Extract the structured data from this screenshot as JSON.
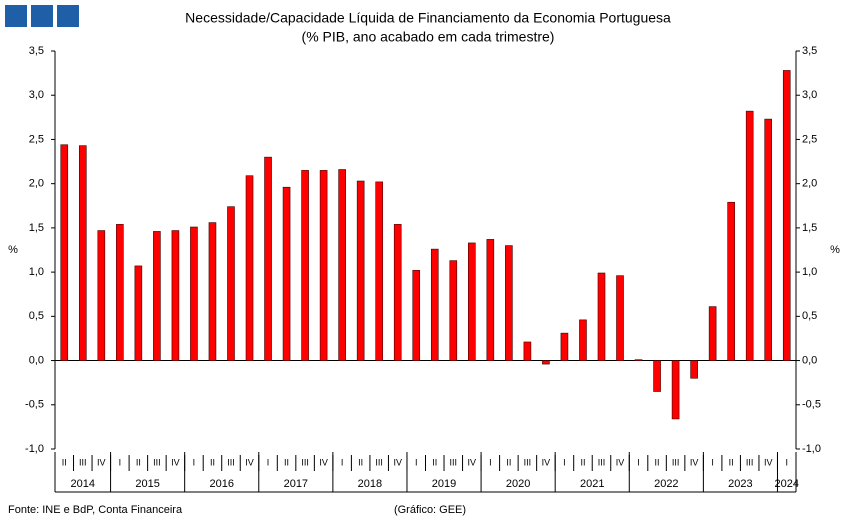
{
  "chart_data": {
    "type": "bar",
    "title": "Necessidade/Capacidade Líquida de Financiamento da Economia Portuguesa",
    "subtitle": "(% PIB, ano acabado em cada trimestre)",
    "y_label": "%",
    "y2_label": "%",
    "source": "Fonte: INE e BdP, Conta Financeira",
    "credit": "(Gráfico: GEE)",
    "categories": [
      "II",
      "III",
      "IV",
      "I",
      "II",
      "III",
      "IV",
      "I",
      "II",
      "III",
      "IV",
      "I",
      "II",
      "III",
      "IV",
      "I",
      "II",
      "III",
      "IV",
      "I",
      "II",
      "III",
      "IV",
      "I",
      "II",
      "III",
      "IV",
      "I",
      "II",
      "III",
      "IV",
      "I",
      "II",
      "III",
      "IV",
      "I",
      "II",
      "III",
      "IV",
      "I"
    ],
    "years": [
      "2014",
      "2015",
      "2016",
      "2017",
      "2018",
      "2019",
      "2020",
      "2021",
      "2022",
      "2023",
      "2024"
    ],
    "values": [
      2.44,
      2.43,
      1.47,
      1.54,
      1.07,
      1.46,
      1.47,
      1.51,
      1.56,
      1.74,
      2.09,
      2.3,
      1.96,
      2.15,
      2.15,
      2.16,
      2.03,
      2.02,
      1.54,
      1.02,
      1.26,
      1.13,
      1.33,
      1.37,
      1.3,
      0.21,
      -0.04,
      0.31,
      0.46,
      0.99,
      0.96,
      0.01,
      -0.35,
      -0.66,
      -0.2,
      0.61,
      1.79,
      2.82,
      2.73,
      3.28
    ],
    "color": "#ff0000",
    "ylim": [
      -1,
      3.5
    ],
    "yticks": [
      {
        "value": -1,
        "label": "-1,0"
      },
      {
        "value": -0.5,
        "label": "-0,5"
      },
      {
        "value": 0,
        "label": "0,0"
      },
      {
        "value": 0.5,
        "label": "0,5"
      },
      {
        "value": 1,
        "label": "1,0"
      },
      {
        "value": 1.5,
        "label": "1,5"
      },
      {
        "value": 2,
        "label": "2,0"
      },
      {
        "value": 2.5,
        "label": "2,5"
      },
      {
        "value": 3,
        "label": "3,0"
      },
      {
        "value": 3.5,
        "label": "3,5"
      }
    ],
    "grid": false
  }
}
